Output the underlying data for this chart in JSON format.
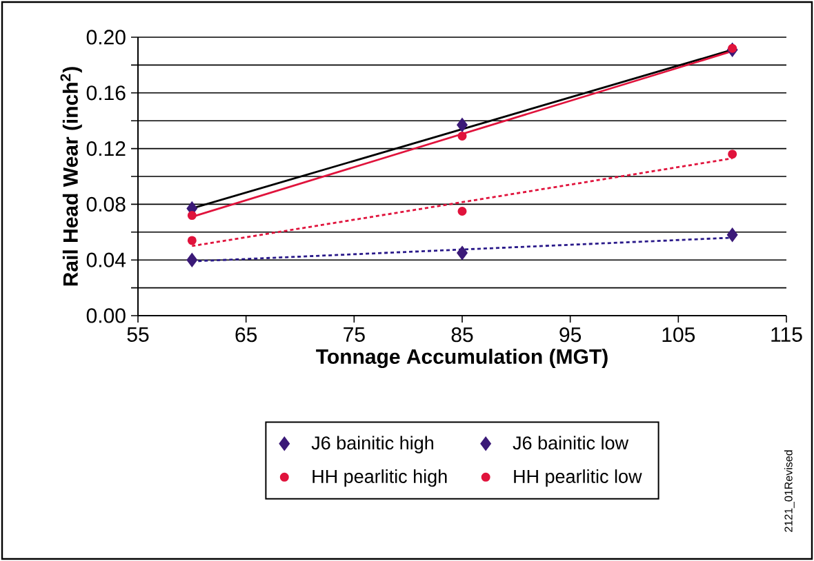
{
  "chart_data": {
    "type": "scatter",
    "xlabel": "Tonnage Accumulation (MGT)",
    "ylabel": "Rail Head Wear (inch$^{2}$)",
    "annotations": [
      "2121_01Revised"
    ],
    "xlim": [
      55,
      115
    ],
    "xticks": [
      55,
      65,
      75,
      85,
      95,
      105,
      115
    ],
    "ylim": [
      0,
      0.2
    ],
    "yticks": [
      {
        "value": 0,
        "label": "0.00"
      },
      {
        "value": 0.02,
        "label": null
      },
      {
        "value": 0.04,
        "label": "0.04"
      },
      {
        "value": 0.06,
        "label": null
      },
      {
        "value": 0.08,
        "label": "0.08"
      },
      {
        "value": 0.1,
        "label": null
      },
      {
        "value": 0.12,
        "label": "0.12"
      },
      {
        "value": 0.14,
        "label": null
      },
      {
        "value": 0.16,
        "label": "0.16"
      },
      {
        "value": 0.18,
        "label": null
      },
      {
        "value": 0.2,
        "label": "0.20"
      }
    ],
    "grid": "y",
    "legend": "bottom",
    "series": [
      {
        "name": "J6 bainitic high",
        "color": "#3b1a78",
        "marker": "diamond",
        "x": [
          60,
          85,
          110
        ],
        "values": [
          0.077,
          0.137,
          0.191
        ]
      },
      {
        "name": "J6 bainitic low",
        "color": "#3b1a78",
        "marker": "diamond",
        "x": [
          60,
          85,
          110
        ],
        "values": [
          0.04,
          0.045,
          0.058
        ]
      },
      {
        "name": "HH pearlitic high",
        "color": "#e0133c",
        "marker": "circle",
        "x": [
          60,
          85,
          110
        ],
        "values": [
          0.072,
          0.129,
          0.192
        ]
      },
      {
        "name": "HH pearlitic low",
        "color": "#e0133c",
        "marker": "circle",
        "x": [
          60,
          85,
          110
        ],
        "values": [
          0.054,
          0.075,
          0.116
        ]
      },
      {
        "type": "line",
        "color": "#000000",
        "line_style": "solid",
        "x": [
          60,
          110
        ],
        "values": [
          0.077,
          0.191
        ]
      },
      {
        "type": "line",
        "color": "#e0133c",
        "line_style": "solid",
        "x": [
          60,
          110
        ],
        "values": [
          0.071,
          0.19
        ]
      },
      {
        "type": "line",
        "color": "#e0133c",
        "line_style": "dotted",
        "x": [
          60,
          110
        ],
        "values": [
          0.05,
          0.113
        ]
      },
      {
        "type": "line",
        "color": "#2a1a8a",
        "line_style": "dotted",
        "x": [
          60,
          110
        ],
        "values": [
          0.039,
          0.056
        ]
      }
    ]
  }
}
